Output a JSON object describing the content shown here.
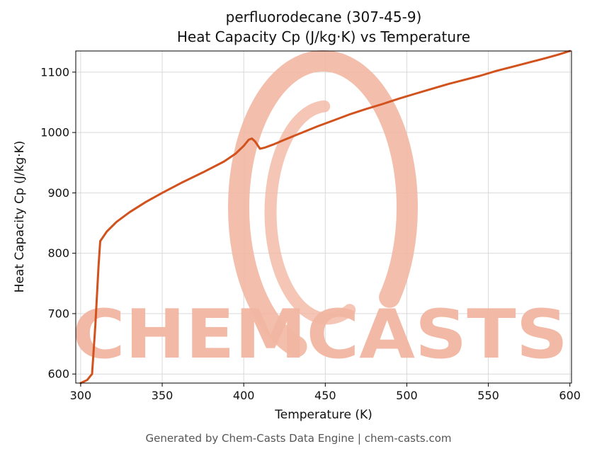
{
  "chart_data": {
    "type": "line",
    "title_line1": "perfluorodecane (307-45-9)",
    "title_line2": "Heat Capacity Cp (J/kg·K) vs Temperature",
    "xlabel": "Temperature (K)",
    "ylabel": "Heat Capacity Cp (J/kg·K)",
    "xlim": [
      297,
      601
    ],
    "ylim": [
      585,
      1135
    ],
    "xticks": [
      300,
      350,
      400,
      450,
      500,
      550,
      600
    ],
    "yticks": [
      600,
      700,
      800,
      900,
      1000,
      1100
    ],
    "grid": true,
    "legend": "none",
    "series": [
      {
        "name": "Heat Capacity Cp",
        "color": "#d2521e",
        "points": [
          [
            300,
            585
          ],
          [
            304,
            590
          ],
          [
            307,
            600
          ],
          [
            309,
            680
          ],
          [
            311,
            780
          ],
          [
            312,
            820
          ],
          [
            316,
            836
          ],
          [
            322,
            852
          ],
          [
            330,
            868
          ],
          [
            340,
            885
          ],
          [
            350,
            900
          ],
          [
            362,
            917
          ],
          [
            375,
            934
          ],
          [
            388,
            952
          ],
          [
            395,
            965
          ],
          [
            400,
            978
          ],
          [
            403,
            988
          ],
          [
            405,
            990
          ],
          [
            407,
            985
          ],
          [
            410,
            973
          ],
          [
            413,
            975
          ],
          [
            418,
            980
          ],
          [
            425,
            988
          ],
          [
            435,
            999
          ],
          [
            445,
            1010
          ],
          [
            455,
            1020
          ],
          [
            465,
            1030
          ],
          [
            475,
            1039
          ],
          [
            485,
            1047
          ],
          [
            495,
            1056
          ],
          [
            505,
            1064
          ],
          [
            515,
            1072
          ],
          [
            525,
            1080
          ],
          [
            535,
            1087
          ],
          [
            545,
            1094
          ],
          [
            555,
            1102
          ],
          [
            565,
            1109
          ],
          [
            575,
            1116
          ],
          [
            585,
            1123
          ],
          [
            593,
            1129
          ],
          [
            600,
            1135
          ]
        ]
      }
    ]
  },
  "watermark": {
    "text": "CHEMCASTS",
    "color": "#f2b7a2"
  },
  "footer": "Generated by Chem-Casts Data Engine | chem-casts.com",
  "colors": {
    "line": "#d2521e",
    "grid": "#d9d9d9",
    "axis": "#000000",
    "text": "#111111",
    "footer_text": "#555555"
  }
}
